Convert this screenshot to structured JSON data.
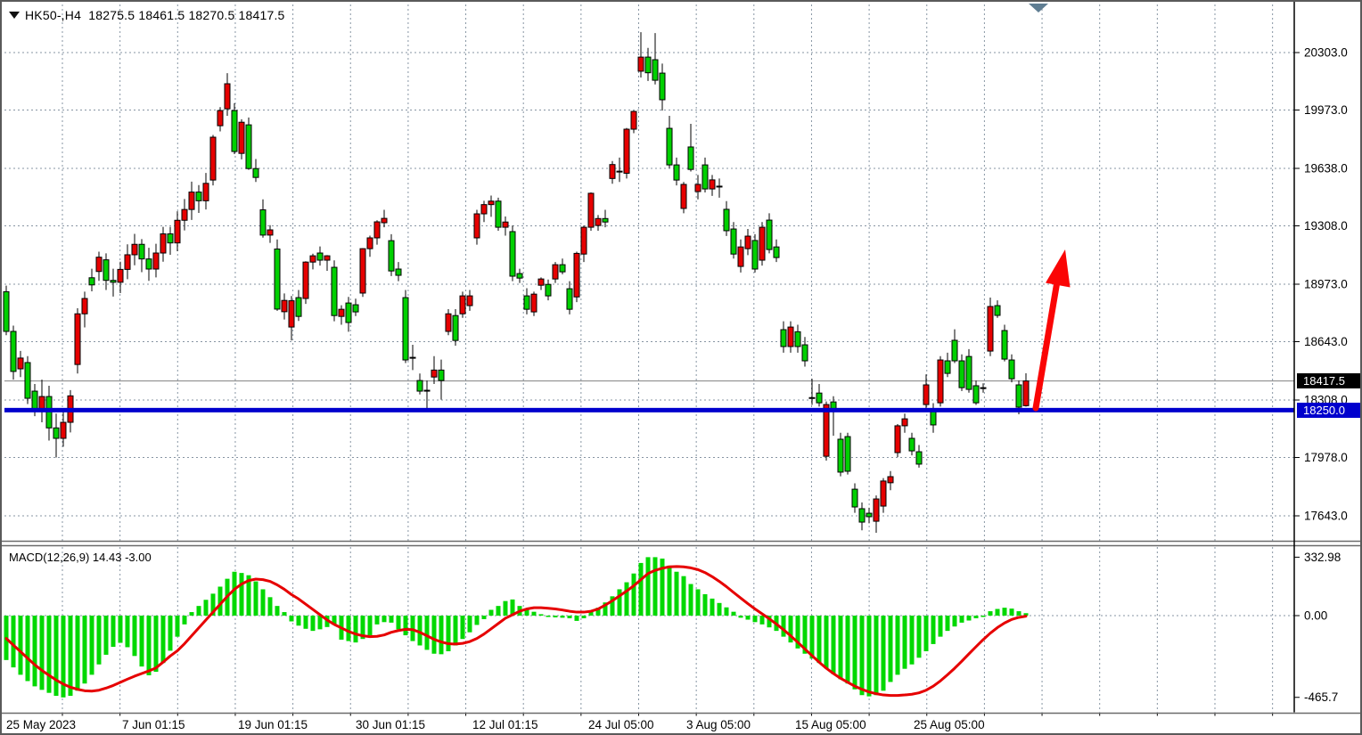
{
  "header": {
    "symbol_line": "HK50-,H4  18275.5 18461.5 18270.5 18417.5",
    "collapse_icon": "triangle-down"
  },
  "macd_label": "MACD(12,26,9) 14.43 -3.00",
  "price_axis": {
    "current_tag": "18417.5",
    "level_tag": "18250.0"
  },
  "colors": {
    "bull": "#e60000",
    "bear": "#00d000",
    "wick": "#000000",
    "grid": "#8795a3",
    "blue_line": "#0000cd",
    "current_line": "#808080",
    "hist": "#00d800",
    "signal": "#e60000",
    "arrow": "#fa0505",
    "axis_text": "#000000"
  },
  "chart_data": [
    {
      "type": "candlestick",
      "title": "HK50-,H4",
      "ohlc_header": {
        "open": 18275.5,
        "high": 18461.5,
        "low": 18270.5,
        "close": 18417.5
      },
      "ylim": [
        17500,
        20550
      ],
      "y_ticks": [
        20303.0,
        19973.0,
        19638.0,
        19308.0,
        18973.0,
        18643.0,
        18308.0,
        17978.0,
        17643.0
      ],
      "x_labels": [
        {
          "text": "25 May 2023",
          "x": 5
        },
        {
          "text": "7 Jun 01:15",
          "x": 135
        },
        {
          "text": "19 Jun 01:15",
          "x": 265
        },
        {
          "text": "30 Jun 01:15",
          "x": 397
        },
        {
          "text": "12 Jul 01:15",
          "x": 528
        },
        {
          "text": "24 Jul 05:00",
          "x": 658
        },
        {
          "text": "3 Aug 05:00",
          "x": 768
        },
        {
          "text": "15 Aug 05:00",
          "x": 890
        },
        {
          "text": "25 Aug 05:00",
          "x": 1023
        }
      ],
      "hlines": [
        {
          "value": 18250.0,
          "style": "thick-blue"
        },
        {
          "value": 18417.5,
          "style": "thin-gray-current-price"
        }
      ],
      "annotations": [
        {
          "type": "up-arrow",
          "from_price": 18260,
          "to_price": 19300,
          "color": "red"
        }
      ],
      "candles": [
        [
          18930,
          18965,
          18680,
          18702
        ],
        [
          18702,
          18735,
          18425,
          18472
        ],
        [
          18487,
          18590,
          18440,
          18549
        ],
        [
          18523,
          18560,
          18285,
          18318
        ],
        [
          18359,
          18400,
          18215,
          18242
        ],
        [
          18242,
          18425,
          18180,
          18328
        ],
        [
          18328,
          18390,
          18075,
          18148
        ],
        [
          18148,
          18230,
          17978,
          18088
        ],
        [
          18088,
          18262,
          18040,
          18180
        ],
        [
          18180,
          18365,
          18122,
          18332
        ],
        [
          18512,
          18835,
          18460,
          18803
        ],
        [
          18803,
          18930,
          18725,
          18891
        ],
        [
          19010,
          19062,
          18932,
          18969
        ],
        [
          19046,
          19160,
          18992,
          19128
        ],
        [
          19113,
          19150,
          18940,
          18995
        ],
        [
          18995,
          19062,
          18902,
          18984
        ],
        [
          18984,
          19102,
          18922,
          19058
        ],
        [
          19058,
          19202,
          19002,
          19142
        ],
        [
          19142,
          19262,
          19082,
          19202
        ],
        [
          19202,
          19232,
          19042,
          19118
        ],
        [
          19118,
          19182,
          18992,
          19060
        ],
        [
          19060,
          19205,
          19012,
          19152
        ],
        [
          19152,
          19302,
          19102,
          19262
        ],
        [
          19262,
          19302,
          19142,
          19210
        ],
        [
          19210,
          19392,
          19162,
          19340
        ],
        [
          19340,
          19462,
          19282,
          19402
        ],
        [
          19402,
          19562,
          19342,
          19502
        ],
        [
          19502,
          19542,
          19382,
          19452
        ],
        [
          19452,
          19612,
          19402,
          19552
        ],
        [
          19571,
          19830,
          19540,
          19817
        ],
        [
          19883,
          19990,
          19850,
          19970
        ],
        [
          19980,
          20185,
          19940,
          20124
        ],
        [
          19970,
          20012,
          19720,
          19735
        ],
        [
          19724,
          19920,
          19690,
          19903
        ],
        [
          19888,
          19930,
          19630,
          19637
        ],
        [
          19637,
          19692,
          19560,
          19586
        ],
        [
          19400,
          19460,
          19240,
          19255
        ],
        [
          19255,
          19312,
          19210,
          19285
        ],
        [
          19175,
          19230,
          18820,
          18830
        ],
        [
          18815,
          18920,
          18770,
          18880
        ],
        [
          18727,
          18905,
          18650,
          18878
        ],
        [
          18896,
          18940,
          18762,
          18788
        ],
        [
          18891,
          19105,
          18860,
          19100
        ],
        [
          19100,
          19148,
          19058,
          19136
        ],
        [
          19152,
          19190,
          19080,
          19111
        ],
        [
          19111,
          19140,
          19050,
          19136
        ],
        [
          19070,
          19110,
          18760,
          18793
        ],
        [
          18788,
          18852,
          18740,
          18829
        ],
        [
          18865,
          18900,
          18700,
          18753
        ],
        [
          18855,
          18890,
          18790,
          18814
        ],
        [
          18922,
          19180,
          18900,
          19177
        ],
        [
          19177,
          19252,
          19130,
          19239
        ],
        [
          19239,
          19340,
          19200,
          19331
        ],
        [
          19326,
          19400,
          19300,
          19351
        ],
        [
          19223,
          19260,
          19020,
          19049
        ],
        [
          19060,
          19100,
          18990,
          19024
        ],
        [
          18896,
          18940,
          18520,
          18538
        ],
        [
          18553,
          18625,
          18480,
          18553
        ],
        [
          18420,
          18460,
          18340,
          18359
        ],
        [
          18364,
          18420,
          18240,
          18364
        ],
        [
          18440,
          18560,
          18400,
          18480
        ],
        [
          18480,
          18540,
          18310,
          18420
        ],
        [
          18702,
          18830,
          18680,
          18803
        ],
        [
          18793,
          18830,
          18620,
          18650
        ],
        [
          18803,
          18930,
          18780,
          18906
        ],
        [
          18850,
          18940,
          18820,
          18906
        ],
        [
          19239,
          19400,
          19200,
          19377
        ],
        [
          19377,
          19452,
          19330,
          19430
        ],
        [
          19430,
          19482,
          19360,
          19450
        ],
        [
          19450,
          19470,
          19280,
          19300
        ],
        [
          19300,
          19362,
          19252,
          19330
        ],
        [
          19275,
          19310,
          18990,
          19019
        ],
        [
          19034,
          19062,
          18980,
          19008
        ],
        [
          18906,
          18950,
          18800,
          18829
        ],
        [
          18814,
          18930,
          18790,
          18916
        ],
        [
          18967,
          19012,
          18940,
          19003
        ],
        [
          18972,
          19000,
          18880,
          18906
        ],
        [
          19003,
          19100,
          18980,
          19085
        ],
        [
          19085,
          19120,
          19030,
          19044
        ],
        [
          18947,
          18990,
          18800,
          18829
        ],
        [
          18900,
          19160,
          18870,
          19150
        ],
        [
          19146,
          19310,
          19100,
          19300
        ],
        [
          19300,
          19500,
          19280,
          19495
        ],
        [
          19310,
          19370,
          19280,
          19350
        ],
        [
          19350,
          19400,
          19300,
          19330
        ],
        [
          19580,
          19680,
          19550,
          19660
        ],
        [
          19620,
          19700,
          19560,
          19622
        ],
        [
          19610,
          19870,
          19580,
          19863
        ],
        [
          19863,
          19970,
          19840,
          19965
        ],
        [
          20196,
          20420,
          20160,
          20277
        ],
        [
          20277,
          20330,
          20140,
          20187
        ],
        [
          20262,
          20415,
          20120,
          20144
        ],
        [
          20185,
          20240,
          19970,
          20032
        ],
        [
          19868,
          19940,
          19640,
          19658
        ],
        [
          19658,
          19700,
          19540,
          19571
        ],
        [
          19408,
          19560,
          19380,
          19546
        ],
        [
          19761,
          19894,
          19620,
          19632
        ],
        [
          19505,
          19600,
          19460,
          19546
        ],
        [
          19658,
          19700,
          19500,
          19520
        ],
        [
          19520,
          19600,
          19480,
          19572
        ],
        [
          19536,
          19580,
          19470,
          19536
        ],
        [
          19403,
          19450,
          19250,
          19280
        ],
        [
          19290,
          19330,
          19120,
          19146
        ],
        [
          19075,
          19230,
          19040,
          19187
        ],
        [
          19177,
          19290,
          19140,
          19249
        ],
        [
          19224,
          19260,
          19040,
          19060
        ],
        [
          19111,
          19330,
          19080,
          19300
        ],
        [
          19341,
          19380,
          19150,
          19172
        ],
        [
          19187,
          19230,
          19100,
          19126
        ],
        [
          18712,
          18760,
          18580,
          18615
        ],
        [
          18615,
          18760,
          18580,
          18727
        ],
        [
          18700,
          18740,
          18580,
          18615
        ],
        [
          18625,
          18670,
          18500,
          18533
        ],
        [
          18320,
          18430,
          18280,
          18322
        ],
        [
          18348,
          18400,
          18270,
          18292
        ],
        [
          17985,
          18300,
          17960,
          18282
        ],
        [
          18297,
          18330,
          18103,
          18256
        ],
        [
          18083,
          18120,
          17870,
          17894
        ],
        [
          18098,
          18120,
          17880,
          17899
        ],
        [
          17796,
          17830,
          17660,
          17694
        ],
        [
          17684,
          17720,
          17560,
          17607
        ],
        [
          17658,
          17690,
          17600,
          17638
        ],
        [
          17612,
          17760,
          17546,
          17740
        ],
        [
          17699,
          17860,
          17660,
          17843
        ],
        [
          17833,
          17900,
          17790,
          17868
        ],
        [
          18006,
          18170,
          17980,
          18160
        ],
        [
          18160,
          18230,
          18120,
          18200
        ],
        [
          18088,
          18120,
          17990,
          18016
        ],
        [
          18011,
          18050,
          17920,
          17940
        ],
        [
          18282,
          18455,
          18250,
          18395
        ],
        [
          18252,
          18290,
          18120,
          18165
        ],
        [
          18292,
          18560,
          18270,
          18538
        ],
        [
          18533,
          18580,
          18440,
          18461
        ],
        [
          18651,
          18714,
          18520,
          18533
        ],
        [
          18533,
          18570,
          18360,
          18379
        ],
        [
          18558,
          18600,
          18350,
          18369
        ],
        [
          18390,
          18420,
          18280,
          18292
        ],
        [
          18379,
          18404,
          18350,
          18379
        ],
        [
          18589,
          18896,
          18560,
          18845
        ],
        [
          18850,
          18880,
          18780,
          18794
        ],
        [
          18707,
          18740,
          18530,
          18543
        ],
        [
          18538,
          18570,
          18410,
          18430
        ],
        [
          18395,
          18420,
          18226,
          18267
        ],
        [
          18275.5,
          18461.5,
          18270.5,
          18417.5
        ]
      ]
    },
    {
      "type": "bar",
      "title": "MACD(12,26,9)",
      "last_values": {
        "macd": 14.43,
        "signal": -3.0
      },
      "y_ticks": [
        332.98,
        0.0,
        -465.7
      ],
      "values": [
        -253,
        -295,
        -337,
        -373,
        -403,
        -423,
        -440,
        -457,
        -466,
        -457,
        -428,
        -387,
        -337,
        -278,
        -223,
        -178,
        -155,
        -180,
        -230,
        -290,
        -340,
        -320,
        -270,
        -200,
        -120,
        -50,
        20,
        55,
        90,
        125,
        165,
        210,
        250,
        243,
        230,
        195,
        150,
        105,
        55,
        20,
        -33,
        -57,
        -75,
        -87,
        -78,
        -65,
        -53,
        -137,
        -145,
        -153,
        -133,
        -112,
        -50,
        -37,
        -40,
        -78,
        -112,
        -145,
        -170,
        -195,
        -217,
        -220,
        -203,
        -170,
        -133,
        -95,
        -53,
        -20,
        33,
        55,
        83,
        92,
        55,
        38,
        22,
        8,
        -5,
        -10,
        -12,
        -15,
        -30,
        -15,
        25,
        45,
        75,
        110,
        150,
        190,
        240,
        300,
        333,
        333,
        325,
        285,
        250,
        225,
        180,
        150,
        122,
        97,
        72,
        47,
        22,
        -12,
        -23,
        -37,
        -50,
        -67,
        -87,
        -120,
        -153,
        -187,
        -217,
        -245,
        -270,
        -300,
        -333,
        -362,
        -387,
        -420,
        -453,
        -460,
        -453,
        -428,
        -378,
        -337,
        -303,
        -278,
        -240,
        -203,
        -162,
        -120,
        -87,
        -62,
        -40,
        -28,
        -15,
        -5,
        25,
        38,
        45,
        40,
        25,
        14
      ],
      "series": [
        {
          "name": "signal",
          "values": [
            -130,
            -168,
            -205,
            -243,
            -280,
            -312,
            -340,
            -367,
            -390,
            -408,
            -420,
            -428,
            -430,
            -425,
            -413,
            -398,
            -380,
            -362,
            -345,
            -330,
            -315,
            -298,
            -265,
            -230,
            -200,
            -160,
            -115,
            -70,
            -25,
            20,
            65,
            110,
            150,
            180,
            200,
            208,
            205,
            195,
            175,
            150,
            120,
            95,
            65,
            35,
            5,
            -25,
            -50,
            -70,
            -90,
            -105,
            -115,
            -120,
            -118,
            -110,
            -95,
            -85,
            -78,
            -80,
            -95,
            -115,
            -135,
            -150,
            -160,
            -162,
            -158,
            -148,
            -130,
            -105,
            -75,
            -45,
            -15,
            5,
            25,
            38,
            45,
            45,
            42,
            38,
            32,
            25,
            20,
            20,
            25,
            38,
            60,
            85,
            112,
            140,
            170,
            205,
            240,
            258,
            270,
            278,
            280,
            278,
            272,
            262,
            245,
            222,
            195,
            165,
            132,
            100,
            68,
            38,
            10,
            -18,
            -48,
            -80,
            -115,
            -152,
            -190,
            -228,
            -265,
            -300,
            -330,
            -357,
            -380,
            -402,
            -420,
            -435,
            -445,
            -452,
            -455,
            -455,
            -452,
            -448,
            -440,
            -425,
            -402,
            -372,
            -337,
            -300,
            -260,
            -218,
            -177,
            -137,
            -100,
            -68,
            -42,
            -22,
            -10,
            -3
          ]
        }
      ]
    }
  ]
}
